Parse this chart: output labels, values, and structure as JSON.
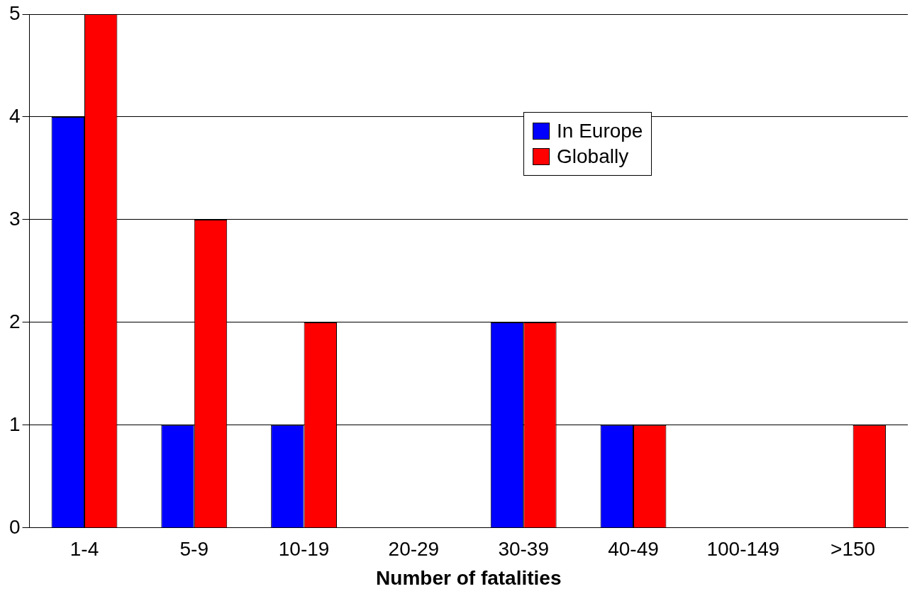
{
  "chart_data": {
    "type": "bar",
    "xlabel": "Number of fatalities",
    "categories": [
      "1-4",
      "5-9",
      "10-19",
      "20-29",
      "30-39",
      "40-49",
      "100-149",
      ">150"
    ],
    "series": [
      {
        "name": "In Europe",
        "color": "#0000ff",
        "values": [
          4,
          1,
          1,
          0,
          2,
          1,
          0,
          0
        ]
      },
      {
        "name": "Globally",
        "color": "#ff0000",
        "values": [
          5,
          3,
          2,
          0,
          2,
          1,
          0,
          1
        ]
      }
    ],
    "ylim": [
      0,
      5
    ],
    "yticks": [
      0,
      1,
      2,
      3,
      4,
      5
    ],
    "grid": "y",
    "legend": "top right"
  }
}
